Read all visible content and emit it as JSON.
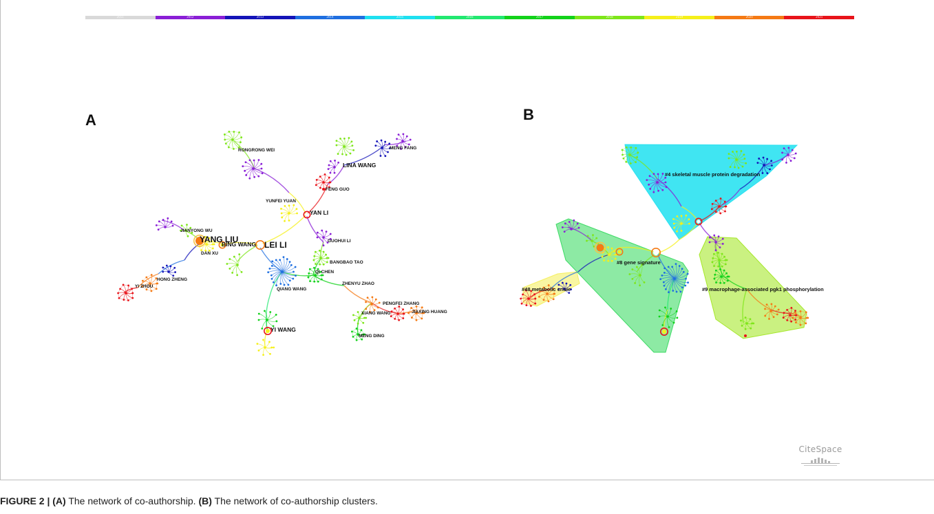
{
  "timeline": {
    "years": [
      "2011",
      "2012",
      "2013",
      "2014",
      "2015",
      "2016",
      "2017",
      "2018",
      "2019",
      "2020",
      "2021"
    ],
    "colors": [
      "#d9d9d9",
      "#8a1fd6",
      "#1414b8",
      "#1f6fe0",
      "#1ee0f0",
      "#22e870",
      "#12d21a",
      "#7ee61a",
      "#f5f01a",
      "#f57a14",
      "#e8141a"
    ]
  },
  "panel_a": {
    "label": "A",
    "authors": [
      {
        "name": "RONGRONG WEI",
        "size": "small"
      },
      {
        "name": "MENG FANG",
        "size": "small"
      },
      {
        "name": "LINA WANG",
        "size": "medium"
      },
      {
        "name": "FENG GUO",
        "size": "small"
      },
      {
        "name": "YUNFEI YUAN",
        "size": "small"
      },
      {
        "name": "YAN LI",
        "size": "medium"
      },
      {
        "name": "JIANYONG WU",
        "size": "small"
      },
      {
        "name": "YANG LIU",
        "size": "large"
      },
      {
        "name": "BING WANG",
        "size": "medium"
      },
      {
        "name": "LEI LI",
        "size": "large"
      },
      {
        "name": "GUOHUI LI",
        "size": "small"
      },
      {
        "name": "DAN XU",
        "size": "small"
      },
      {
        "name": "BANGBAO TAO",
        "size": "small"
      },
      {
        "name": "QI CHEN",
        "size": "small"
      },
      {
        "name": "HONG ZHENG",
        "size": "small"
      },
      {
        "name": "ZHENYU ZHAO",
        "size": "small"
      },
      {
        "name": "YI ZHOU",
        "size": "small"
      },
      {
        "name": "QIANG WANG",
        "size": "small"
      },
      {
        "name": "PENGFEI ZHANG",
        "size": "small"
      },
      {
        "name": "JIAXING HUANG",
        "size": "small"
      },
      {
        "name": "XIANG WANG",
        "size": "small"
      },
      {
        "name": "YI WANG",
        "size": "medium"
      },
      {
        "name": "MENG DING",
        "size": "small"
      }
    ]
  },
  "panel_b": {
    "label": "B",
    "clusters": [
      {
        "label": "#4 skeletal muscle protein degradation",
        "color": "#1fe0f0"
      },
      {
        "label": "#8 gene signature",
        "color": "#2fd85a"
      },
      {
        "label": "#48 metabolic crisie",
        "color": "#f4ee55"
      },
      {
        "label": "#9 macrophage-associated pgk1 phosphorylation",
        "color": "#9ee61a"
      }
    ]
  },
  "logo": {
    "text": "CiteSpace"
  },
  "caption": {
    "figure": "FIGURE 2 |",
    "a_marker": "(A)",
    "a_text": " The network of co-authorship. ",
    "b_marker": "(B)",
    "b_text": " The network of co-authorship clusters."
  }
}
